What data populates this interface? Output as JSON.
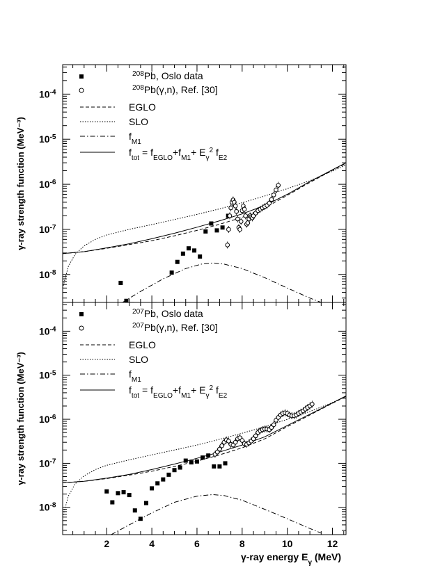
{
  "chart_data": [
    {
      "type": "scatter",
      "panel": "top",
      "xlabel": "",
      "ylabel": "γ-ray strength function (MeV⁻³)",
      "xlim": [
        0.05,
        12.6
      ],
      "ylim": [
        2.4e-09,
        0.00045
      ],
      "yscale": "log",
      "x_ticks": [
        2,
        4,
        6,
        8,
        10,
        12
      ],
      "y_ticks": [
        {
          "value": 1e-08,
          "label": "10⁻⁸"
        },
        {
          "value": 1e-07,
          "label": "10⁻⁷"
        },
        {
          "value": 1e-06,
          "label": "10⁻⁶"
        },
        {
          "value": 1e-05,
          "label": "10⁻⁵"
        },
        {
          "value": 0.0001,
          "label": "10⁻⁴"
        }
      ],
      "legend_position": "top-left",
      "legend": [
        {
          "key": "oslo",
          "label": "²⁰⁸Pb, Oslo data",
          "style": "filled-square"
        },
        {
          "key": "gn",
          "label": "²⁰⁸Pb(γ,n), Ref. [30]",
          "style": "open-circle"
        },
        {
          "key": "eglo",
          "label": "EGLO",
          "style": "dashed"
        },
        {
          "key": "slo",
          "label": "SLO",
          "style": "dotted"
        },
        {
          "key": "fm1",
          "label": "f_M1",
          "style": "dash-dot"
        },
        {
          "key": "ftot",
          "label": "f_tot = f_EGLO+f_M1+ E_γ² f_E2",
          "style": "solid"
        }
      ],
      "series": [
        {
          "name": "²⁰⁸Pb, Oslo data",
          "marker": "filled-square",
          "x": [
            2.62,
            2.87,
            3.12,
            4.13,
            4.88,
            5.13,
            5.38,
            5.63,
            5.88,
            6.13,
            6.38,
            6.63,
            6.88,
            7.13,
            7.38
          ],
          "y": [
            6.5e-09,
            2.6e-09,
            2.2e-09,
            2.2e-09,
            1.1e-08,
            1.9e-08,
            2.9e-08,
            3.8e-08,
            3.4e-08,
            2.5e-08,
            9e-08,
            1.35e-07,
            9.5e-08,
            1.1e-07,
            2e-07
          ]
        },
        {
          "name": "²⁰⁸Pb(γ,n), Ref. [30]",
          "marker": "open-circle",
          "x": [
            7.35,
            7.4,
            7.45,
            7.5,
            7.55,
            7.6,
            7.65,
            7.7,
            7.75,
            7.8,
            7.85,
            7.9,
            7.95,
            8.0,
            8.05,
            8.1,
            8.15,
            8.2,
            8.25,
            8.3,
            8.35,
            8.4,
            8.45,
            8.5,
            8.6,
            8.7,
            8.8,
            8.9,
            9.0,
            9.1,
            9.2,
            9.3,
            9.4,
            9.5,
            9.6
          ],
          "y": [
            4.5e-08,
            1e-07,
            2e-07,
            3e-07,
            4e-07,
            4.5e-07,
            4e-07,
            3.3e-07,
            2.5e-07,
            1.7e-07,
            1.1e-07,
            1e-07,
            1.5e-07,
            2.6e-07,
            3.3e-07,
            2.8e-07,
            2e-07,
            1.3e-07,
            1.4e-07,
            1.7e-07,
            2e-07,
            1.9e-07,
            1.8e-07,
            2e-07,
            2.3e-07,
            2.6e-07,
            2.8e-07,
            3e-07,
            3.2e-07,
            3.4e-07,
            3.8e-07,
            4.6e-07,
            5.8e-07,
            7.5e-07,
            9.5e-07
          ]
        },
        {
          "name": "EGLO",
          "line": "dashed",
          "x": [
            0.05,
            1,
            2,
            3,
            4,
            5,
            6,
            7,
            8,
            9,
            10,
            11,
            12,
            12.6
          ],
          "y": [
            2.9e-08,
            3.2e-08,
            3.8e-08,
            4.6e-08,
            5.6e-08,
            7.2e-08,
            9.5e-08,
            1.3e-07,
            1.85e-07,
            3e-07,
            5.7e-07,
            1.1e-06,
            2.05e-06,
            2.9e-06
          ]
        },
        {
          "name": "SLO",
          "line": "dotted",
          "x": [
            0.05,
            0.3,
            0.6,
            1,
            1.5,
            2,
            3,
            4,
            5,
            6,
            7,
            8,
            9,
            10,
            11,
            12,
            12.6
          ],
          "y": [
            5e-09,
            1.5e-08,
            2.8e-08,
            4.3e-08,
            6e-08,
            7.5e-08,
            1e-07,
            1.28e-07,
            1.65e-07,
            2.15e-07,
            2.85e-07,
            3.9e-07,
            5.5e-07,
            8e-07,
            1.2e-06,
            1.95e-06,
            2.7e-06
          ]
        },
        {
          "name": "f_M1",
          "line": "dash-dot",
          "x": [
            2.7,
            3.5,
            4.5,
            5.5,
            6.2,
            6.7,
            7.2,
            8,
            9,
            10,
            11,
            11.5
          ],
          "y": [
            2.4e-09,
            4.2e-09,
            8e-09,
            1.35e-08,
            1.7e-08,
            1.8e-08,
            1.7e-08,
            1.35e-08,
            8.5e-09,
            5e-09,
            3e-09,
            2.4e-09
          ]
        },
        {
          "name": "f_tot",
          "line": "solid",
          "x": [
            0.05,
            1,
            2,
            3,
            4,
            5,
            6,
            7,
            8,
            9,
            10,
            11,
            12,
            12.6
          ],
          "y": [
            2.9e-08,
            3.2e-08,
            3.9e-08,
            4.8e-08,
            6.2e-08,
            8.2e-08,
            1.12e-07,
            1.55e-07,
            2.2e-07,
            3.4e-07,
            6e-07,
            1.15e-06,
            2.1e-06,
            3e-06
          ]
        }
      ]
    },
    {
      "type": "scatter",
      "panel": "bottom",
      "xlabel": "γ-ray energy E_γ (MeV)",
      "ylabel": "γ-ray strength function (MeV⁻³)",
      "xlim": [
        0.05,
        12.6
      ],
      "ylim": [
        2.4e-09,
        0.00045
      ],
      "yscale": "log",
      "x_ticks": [
        2,
        4,
        6,
        8,
        10,
        12
      ],
      "y_ticks": [
        {
          "value": 1e-08,
          "label": "10⁻⁸"
        },
        {
          "value": 1e-07,
          "label": "10⁻⁷"
        },
        {
          "value": 1e-06,
          "label": "10⁻⁶"
        },
        {
          "value": 1e-05,
          "label": "10⁻⁵"
        },
        {
          "value": 0.0001,
          "label": "10⁻⁴"
        }
      ],
      "legend_position": "top-left",
      "legend": [
        {
          "key": "oslo",
          "label": "²⁰⁷Pb, Oslo data",
          "style": "filled-square"
        },
        {
          "key": "gn",
          "label": "²⁰⁷Pb(γ,n), Ref. [30]",
          "style": "open-circle"
        },
        {
          "key": "eglo",
          "label": "EGLO",
          "style": "dashed"
        },
        {
          "key": "slo",
          "label": "SLO",
          "style": "dotted"
        },
        {
          "key": "fm1",
          "label": "f_M1",
          "style": "dash-dot"
        },
        {
          "key": "ftot",
          "label": "f_tot = f_EGLO+f_M1+ E_γ² f_E2",
          "style": "solid"
        }
      ],
      "series": [
        {
          "name": "²⁰⁷Pb, Oslo data",
          "marker": "filled-square",
          "x": [
            2.0,
            2.25,
            2.5,
            2.75,
            3.0,
            3.25,
            3.5,
            3.75,
            4.0,
            4.25,
            4.5,
            4.75,
            5.0,
            5.25,
            5.5,
            5.75,
            6.0,
            6.25,
            6.5,
            6.75,
            7.0,
            7.25
          ],
          "y": [
            2.3e-08,
            1.3e-08,
            2.1e-08,
            2.2e-08,
            1.9e-08,
            8.5e-09,
            5.5e-09,
            1.25e-08,
            2.7e-08,
            3.5e-08,
            4.3e-08,
            5.5e-08,
            7e-08,
            8e-08,
            1.15e-07,
            1.05e-07,
            1.1e-07,
            1.35e-07,
            1.5e-07,
            8.5e-08,
            8.5e-08,
            1e-07
          ]
        },
        {
          "name": "²⁰⁷Pb(γ,n), Ref. [30]",
          "marker": "open-circle",
          "x": [
            6.8,
            6.9,
            7.0,
            7.1,
            7.2,
            7.3,
            7.4,
            7.5,
            7.6,
            7.7,
            7.8,
            7.9,
            8.0,
            8.1,
            8.2,
            8.3,
            8.4,
            8.5,
            8.6,
            8.7,
            8.8,
            8.9,
            9.0,
            9.1,
            9.2,
            9.3,
            9.4,
            9.5,
            9.6,
            9.7,
            9.8,
            9.9,
            10.0,
            10.1,
            10.2,
            10.3,
            10.4,
            10.5,
            10.6,
            10.7,
            10.8,
            10.9,
            11.0,
            11.1
          ],
          "y": [
            1.6e-07,
            1.8e-07,
            2.1e-07,
            2.5e-07,
            3e-07,
            3.4e-07,
            3.2e-07,
            2.7e-07,
            2.6e-07,
            3e-07,
            3.6e-07,
            3.8e-07,
            3.3e-07,
            2.8e-07,
            2.7e-07,
            2.9e-07,
            3.2e-07,
            3.6e-07,
            4.2e-07,
            5e-07,
            5.5e-07,
            5.8e-07,
            6e-07,
            6e-07,
            5.8e-07,
            6.5e-07,
            7.5e-07,
            9.5e-07,
            1.1e-06,
            1.25e-06,
            1.35e-06,
            1.4e-06,
            1.35e-06,
            1.25e-06,
            1.2e-06,
            1.2e-06,
            1.25e-06,
            1.35e-06,
            1.45e-06,
            1.55e-06,
            1.7e-06,
            1.85e-06,
            2e-06,
            2.2e-06
          ]
        },
        {
          "name": "EGLO",
          "line": "dashed",
          "x": [
            0.05,
            1,
            2,
            3,
            4,
            5,
            6,
            7,
            8,
            9,
            10,
            11,
            12,
            12.6
          ],
          "y": [
            3.6e-08,
            3.9e-08,
            4.5e-08,
            5.4e-08,
            6.6e-08,
            8.5e-08,
            1.12e-07,
            1.55e-07,
            2.25e-07,
            3.6e-07,
            6.8e-07,
            1.25e-06,
            2.3e-06,
            3.3e-06
          ]
        },
        {
          "name": "SLO",
          "line": "dotted",
          "x": [
            0.05,
            0.3,
            0.6,
            1,
            1.5,
            2,
            3,
            4,
            5,
            6,
            7,
            8,
            9,
            10,
            11,
            12,
            12.6
          ],
          "y": [
            6e-09,
            1.8e-08,
            3.4e-08,
            5.2e-08,
            7.2e-08,
            9e-08,
            1.2e-07,
            1.55e-07,
            2e-07,
            2.6e-07,
            3.5e-07,
            4.8e-07,
            6.8e-07,
            1e-06,
            1.5e-06,
            2.4e-06,
            3.3e-06
          ]
        },
        {
          "name": "f_M1",
          "line": "dash-dot",
          "x": [
            2.2,
            3,
            4,
            5,
            6,
            6.7,
            7.2,
            8,
            9,
            10,
            11,
            11.5
          ],
          "y": [
            2.4e-09,
            4e-09,
            7.5e-09,
            1.3e-08,
            1.8e-08,
            1.95e-08,
            1.85e-08,
            1.45e-08,
            9e-09,
            5.5e-09,
            3.3e-09,
            2.6e-09
          ]
        },
        {
          "name": "f_tot",
          "line": "solid",
          "x": [
            0.05,
            1,
            2,
            3,
            4,
            5,
            6,
            7,
            8,
            9,
            10,
            11,
            12,
            12.6
          ],
          "y": [
            3.6e-08,
            3.9e-08,
            4.6e-08,
            5.6e-08,
            7.2e-08,
            9.6e-08,
            1.3e-07,
            1.8e-07,
            2.6e-07,
            4e-07,
            7.2e-07,
            1.3e-06,
            2.35e-06,
            3.4e-06
          ]
        }
      ]
    }
  ]
}
